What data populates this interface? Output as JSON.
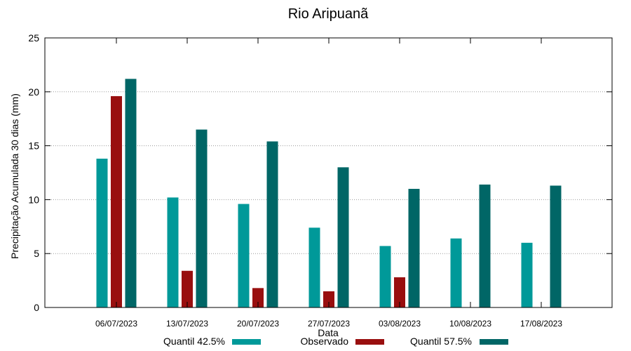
{
  "chart_data": {
    "type": "bar",
    "title": "Rio Aripuanã",
    "xlabel": "Data",
    "ylabel": "Precipitação Acumulada 30 dias (mm)",
    "ylim": [
      0,
      25
    ],
    "yticks": [
      0,
      5,
      10,
      15,
      20,
      25
    ],
    "grid": true,
    "categories": [
      "06/07/2023",
      "13/07/2023",
      "20/07/2023",
      "27/07/2023",
      "03/08/2023",
      "10/08/2023",
      "17/08/2023"
    ],
    "series": [
      {
        "name": "Quantil 42.5%",
        "color": "#009999",
        "values": [
          13.8,
          10.2,
          9.6,
          7.4,
          5.7,
          6.4,
          6.0
        ]
      },
      {
        "name": "Observado",
        "color": "#990f0f",
        "values": [
          19.6,
          3.4,
          1.8,
          1.5,
          2.8,
          null,
          null
        ]
      },
      {
        "name": "Quantil 57.5%",
        "color": "#006666",
        "values": [
          21.2,
          16.5,
          15.4,
          13.0,
          11.0,
          11.4,
          11.3
        ]
      }
    ],
    "legend_position": "bottom"
  }
}
